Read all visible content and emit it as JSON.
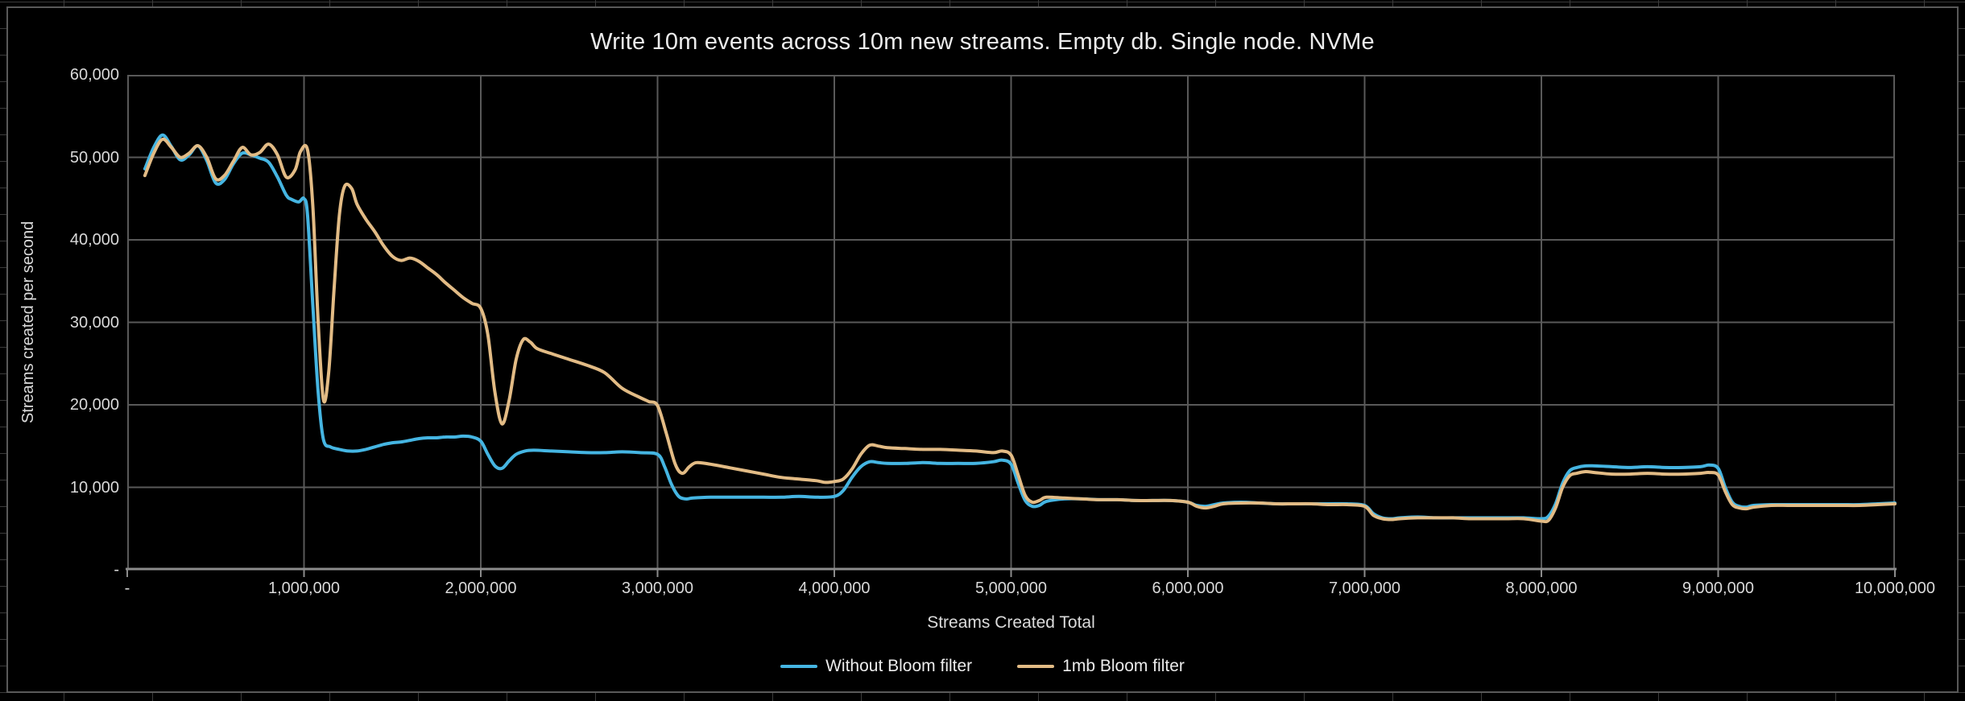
{
  "chart_data": {
    "type": "line",
    "title": "Write 10m events across 10m new streams. Empty db. Single node. NVMe",
    "xlabel": "Streams Created Total",
    "ylabel": "Streams created per second",
    "xlim_streams": [
      0,
      10000000
    ],
    "ylim_streams_per_second": [
      0,
      60000
    ],
    "grid": true,
    "smoothed_lines": true,
    "legend_position": "bottom-center",
    "x_tick_values_millions": [
      0,
      1,
      2,
      3,
      4,
      5,
      6,
      7,
      8,
      9,
      10
    ],
    "x_tick_labels": [
      "-",
      "1,000,000",
      "2,000,000",
      "3,000,000",
      "4,000,000",
      "5,000,000",
      "6,000,000",
      "7,000,000",
      "8,000,000",
      "9,000,000",
      "10,000,000"
    ],
    "y_tick_values": [
      0,
      10000,
      20000,
      30000,
      40000,
      50000,
      60000
    ],
    "y_tick_labels": [
      "-",
      "10,000",
      "20,000",
      "30,000",
      "40,000",
      "50,000",
      "60,000"
    ],
    "x_unit": "streams created total (values stored in millions)",
    "y_unit": "streams created per second (values stored in thousands)",
    "series": [
      {
        "name": "Without Bloom filter",
        "color": "#45b5e2",
        "x_millions": [
          0.1,
          0.15,
          0.2,
          0.25,
          0.3,
          0.35,
          0.4,
          0.45,
          0.5,
          0.55,
          0.6,
          0.65,
          0.7,
          0.75,
          0.8,
          0.85,
          0.9,
          0.93,
          0.97,
          1.0,
          1.02,
          1.05,
          1.08,
          1.11,
          1.15,
          1.2,
          1.25,
          1.3,
          1.35,
          1.4,
          1.45,
          1.5,
          1.55,
          1.6,
          1.65,
          1.7,
          1.75,
          1.8,
          1.85,
          1.9,
          1.95,
          2.0,
          2.04,
          2.08,
          2.12,
          2.16,
          2.2,
          2.25,
          2.3,
          2.4,
          2.5,
          2.6,
          2.7,
          2.8,
          2.9,
          3.0,
          3.04,
          3.08,
          3.12,
          3.16,
          3.2,
          3.3,
          3.4,
          3.5,
          3.6,
          3.7,
          3.8,
          3.9,
          4.0,
          4.05,
          4.1,
          4.15,
          4.2,
          4.25,
          4.3,
          4.4,
          4.5,
          4.6,
          4.7,
          4.8,
          4.9,
          4.95,
          5.0,
          5.04,
          5.08,
          5.12,
          5.16,
          5.2,
          5.3,
          5.4,
          5.5,
          5.6,
          5.7,
          5.8,
          5.9,
          6.0,
          6.05,
          6.1,
          6.15,
          6.2,
          6.3,
          6.4,
          6.5,
          6.6,
          6.7,
          6.8,
          6.9,
          7.0,
          7.05,
          7.1,
          7.15,
          7.2,
          7.3,
          7.4,
          7.5,
          7.6,
          7.7,
          7.8,
          7.9,
          8.0,
          8.04,
          8.08,
          8.12,
          8.16,
          8.2,
          8.25,
          8.3,
          8.4,
          8.5,
          8.6,
          8.7,
          8.8,
          8.9,
          8.95,
          9.0,
          9.04,
          9.08,
          9.12,
          9.16,
          9.2,
          9.3,
          9.4,
          9.5,
          9.6,
          9.7,
          9.8,
          9.9,
          10.0
        ],
        "y_thousands": [
          48.6,
          51.2,
          52.7,
          51.3,
          49.7,
          50.3,
          51.4,
          49.6,
          46.9,
          47.3,
          49.2,
          50.5,
          50.3,
          49.9,
          49.4,
          47.6,
          45.4,
          44.9,
          44.6,
          45.0,
          43.0,
          32.0,
          21.5,
          15.8,
          14.9,
          14.6,
          14.4,
          14.4,
          14.6,
          14.9,
          15.2,
          15.4,
          15.5,
          15.7,
          15.9,
          16.0,
          16.0,
          16.1,
          16.1,
          16.2,
          16.1,
          15.6,
          14.0,
          12.6,
          12.3,
          13.2,
          14.0,
          14.4,
          14.5,
          14.4,
          14.3,
          14.2,
          14.2,
          14.3,
          14.2,
          14.0,
          12.5,
          10.3,
          8.9,
          8.6,
          8.7,
          8.8,
          8.8,
          8.8,
          8.8,
          8.8,
          8.9,
          8.8,
          8.9,
          9.6,
          11.2,
          12.5,
          13.1,
          13.0,
          12.9,
          12.9,
          13.0,
          12.9,
          12.9,
          12.9,
          13.1,
          13.3,
          12.8,
          10.5,
          8.4,
          7.7,
          7.8,
          8.3,
          8.6,
          8.6,
          8.5,
          8.5,
          8.4,
          8.4,
          8.4,
          8.2,
          7.8,
          7.7,
          7.9,
          8.1,
          8.2,
          8.1,
          8.0,
          8.0,
          8.0,
          8.0,
          8.0,
          7.8,
          6.8,
          6.3,
          6.2,
          6.3,
          6.4,
          6.3,
          6.3,
          6.3,
          6.3,
          6.3,
          6.3,
          6.2,
          6.5,
          8.0,
          10.5,
          12.0,
          12.4,
          12.6,
          12.6,
          12.5,
          12.4,
          12.5,
          12.4,
          12.4,
          12.5,
          12.7,
          12.3,
          10.0,
          8.2,
          7.7,
          7.6,
          7.8,
          7.9,
          7.9,
          7.9,
          7.9,
          7.9,
          7.9,
          8.0,
          8.1
        ]
      },
      {
        "name": "1mb Bloom filter",
        "color": "#e2bb85",
        "x_millions": [
          0.1,
          0.15,
          0.2,
          0.25,
          0.3,
          0.35,
          0.4,
          0.45,
          0.5,
          0.55,
          0.6,
          0.65,
          0.7,
          0.75,
          0.8,
          0.85,
          0.9,
          0.95,
          0.98,
          1.02,
          1.05,
          1.08,
          1.11,
          1.14,
          1.17,
          1.2,
          1.23,
          1.27,
          1.3,
          1.35,
          1.4,
          1.45,
          1.5,
          1.55,
          1.6,
          1.65,
          1.7,
          1.75,
          1.8,
          1.85,
          1.9,
          1.95,
          2.0,
          2.04,
          2.08,
          2.12,
          2.16,
          2.2,
          2.24,
          2.28,
          2.32,
          2.4,
          2.5,
          2.6,
          2.7,
          2.8,
          2.9,
          2.95,
          3.0,
          3.05,
          3.1,
          3.14,
          3.18,
          3.22,
          3.3,
          3.4,
          3.5,
          3.6,
          3.7,
          3.8,
          3.9,
          3.95,
          4.0,
          4.05,
          4.1,
          4.15,
          4.2,
          4.25,
          4.3,
          4.4,
          4.5,
          4.6,
          4.7,
          4.8,
          4.9,
          4.95,
          5.0,
          5.04,
          5.08,
          5.12,
          5.16,
          5.2,
          5.3,
          5.4,
          5.5,
          5.6,
          5.7,
          5.8,
          5.9,
          6.0,
          6.05,
          6.1,
          6.15,
          6.2,
          6.3,
          6.4,
          6.5,
          6.6,
          6.7,
          6.8,
          6.9,
          7.0,
          7.05,
          7.1,
          7.15,
          7.2,
          7.3,
          7.4,
          7.5,
          7.6,
          7.7,
          7.8,
          7.9,
          8.0,
          8.04,
          8.08,
          8.12,
          8.16,
          8.2,
          8.25,
          8.3,
          8.4,
          8.5,
          8.6,
          8.7,
          8.8,
          8.9,
          8.95,
          9.0,
          9.04,
          9.08,
          9.12,
          9.16,
          9.2,
          9.3,
          9.4,
          9.5,
          9.6,
          9.7,
          9.8,
          9.9,
          10.0
        ],
        "y_thousands": [
          47.8,
          50.5,
          52.2,
          51.2,
          50.0,
          50.5,
          51.4,
          50.0,
          47.4,
          47.8,
          49.5,
          51.2,
          50.3,
          50.6,
          51.6,
          50.3,
          47.6,
          48.5,
          50.7,
          50.9,
          44.0,
          30.0,
          20.6,
          24.0,
          34.0,
          43.0,
          46.5,
          46.2,
          44.3,
          42.5,
          41.0,
          39.3,
          38.0,
          37.5,
          37.8,
          37.4,
          36.6,
          35.8,
          34.8,
          33.9,
          33.0,
          32.3,
          31.7,
          28.5,
          21.5,
          17.7,
          20.5,
          25.5,
          27.9,
          27.6,
          26.8,
          26.2,
          25.5,
          24.8,
          23.9,
          22.0,
          20.9,
          20.4,
          19.9,
          16.5,
          12.8,
          11.7,
          12.5,
          13.0,
          12.8,
          12.4,
          12.0,
          11.6,
          11.2,
          11.0,
          10.8,
          10.6,
          10.7,
          11.0,
          12.2,
          14.0,
          15.1,
          15.0,
          14.8,
          14.7,
          14.6,
          14.6,
          14.5,
          14.4,
          14.2,
          14.4,
          13.9,
          11.5,
          9.0,
          8.2,
          8.4,
          8.8,
          8.7,
          8.6,
          8.5,
          8.5,
          8.4,
          8.4,
          8.4,
          8.2,
          7.7,
          7.5,
          7.7,
          8.0,
          8.1,
          8.1,
          8.0,
          8.0,
          8.0,
          7.9,
          7.9,
          7.7,
          6.6,
          6.2,
          6.1,
          6.2,
          6.3,
          6.3,
          6.3,
          6.2,
          6.2,
          6.2,
          6.2,
          5.9,
          6.0,
          7.5,
          10.0,
          11.4,
          11.7,
          11.9,
          11.8,
          11.6,
          11.6,
          11.7,
          11.6,
          11.6,
          11.7,
          11.8,
          11.5,
          9.5,
          7.9,
          7.5,
          7.4,
          7.6,
          7.8,
          7.8,
          7.8,
          7.8,
          7.8,
          7.8,
          7.9,
          8.0
        ]
      }
    ]
  },
  "colors": {
    "background": "#000000",
    "sheet_gridline": "#3c3c3c",
    "chart_border": "#595959",
    "plot_gridline": "#595959",
    "axis_line": "#8c8c8c",
    "tick_label": "#d9d9d9",
    "title_text": "#ececec",
    "series_blue": "#45b5e2",
    "series_orange": "#e2bb85"
  }
}
